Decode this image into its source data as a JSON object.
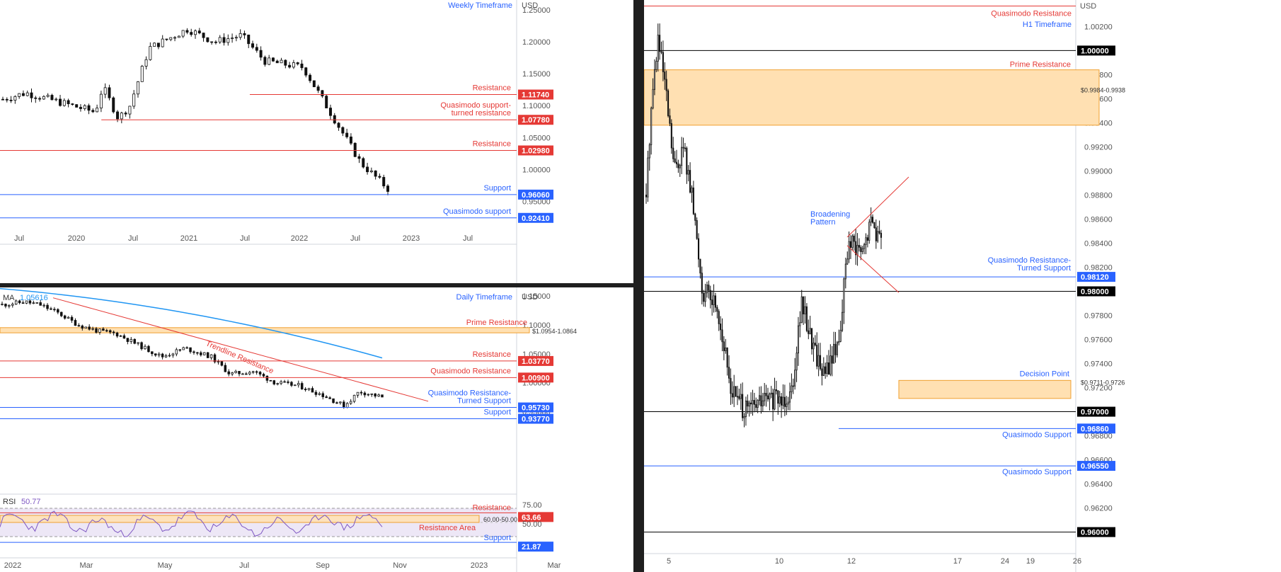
{
  "colors": {
    "bull": "#111111",
    "bear": "#111111",
    "resistance": "#e53935",
    "support": "#2962ff",
    "ma": "#2196f3",
    "rsi": "#7e57c2",
    "zone_fill": "#ffe0b2",
    "zone_stroke": "#f0a030",
    "tag_red": "#e53935",
    "tag_blue": "#2962ff",
    "tag_black": "#000000",
    "rsi_band": "#ede7f6"
  },
  "weekly": {
    "title": "Weekly Timeframe",
    "currency": "USD",
    "y_ticks": [
      "1.25000",
      "1.20000",
      "1.15000",
      "1.10000",
      "1.05000",
      "1.00000",
      "0.95000"
    ],
    "x_ticks": [
      "Jul",
      "2020",
      "Jul",
      "2021",
      "Jul",
      "2022",
      "Jul",
      "2023",
      "Jul"
    ],
    "levels": [
      {
        "label": "Resistance",
        "price": "1.11740",
        "kind": "resistance",
        "from": 0.21
      },
      {
        "label": "Quasimodo support-\nturned resistance",
        "price": "1.07780",
        "kind": "resistance",
        "from": 0.16
      },
      {
        "label": "Resistance",
        "price": "1.02980",
        "kind": "resistance",
        "from": 0.0
      },
      {
        "label": "Support",
        "price": "0.96060",
        "kind": "support",
        "from": 0.0
      },
      {
        "label": "Quasimodo support",
        "price": "0.92410",
        "kind": "support",
        "from": 0.0
      }
    ]
  },
  "daily": {
    "title": "Daily Timeframe",
    "currency": "USD",
    "ma_label": "MA",
    "ma_value": "1.05616",
    "trendline_label": "Trendline Resistance",
    "y_ticks": [
      "1.15000",
      "1.10000",
      "1.05000",
      "1.00000",
      "0.95000"
    ],
    "x_ticks": [
      "2022",
      "Mar",
      "May",
      "Jul",
      "Sep",
      "Nov",
      "2023",
      "Mar"
    ],
    "zone": {
      "label": "Prime Resistance",
      "range": "$1.0954-1.0864",
      "top": 1.0954,
      "bottom": 1.0864
    },
    "levels": [
      {
        "label": "Resistance",
        "price": "1.03770",
        "kind": "resistance"
      },
      {
        "label": "Quasimodo Resistance",
        "price": "1.00900",
        "kind": "resistance"
      },
      {
        "label": "Quasimodo Resistance-\nTurned Support",
        "price": "0.95730",
        "kind": "support"
      },
      {
        "label": "Support",
        "price": "0.93770",
        "kind": "support"
      }
    ],
    "rsi": {
      "label": "RSI",
      "value": "50.77",
      "y_ticks": [
        "75.00",
        "50.00"
      ],
      "zone_range": "60.00-50.00",
      "zone_label": "Resistance Area",
      "resistance_label": "Resistance",
      "resistance_value": "63.66",
      "support_label": "Support",
      "support_value": "21.87"
    }
  },
  "h1": {
    "title": "H1 Timeframe",
    "currency": "USD",
    "y_ticks": [
      "1.00200",
      "0.99800",
      "0.99600",
      "0.99400",
      "0.99200",
      "0.99000",
      "0.98800",
      "0.98600",
      "0.98400",
      "0.98200",
      "0.97800",
      "0.97600",
      "0.97400",
      "0.97200",
      "0.96800",
      "0.96600",
      "0.96400",
      "0.96200"
    ],
    "x_ticks": [
      "5",
      "10",
      "12",
      "17",
      "19",
      "24",
      "26"
    ],
    "round_levels": [
      "1.00000",
      "0.98000",
      "0.97000",
      "0.96000"
    ],
    "qm_resistance": {
      "label": "Quasimodo Resistance",
      "price": 1.0037
    },
    "prime_zone": {
      "label": "Prime Resistance",
      "range": "$0.9984-0.9938",
      "top": 0.9984,
      "bottom": 0.9938
    },
    "decision_zone": {
      "label": "Decision Point",
      "range": "$0.9711-0.9726",
      "top": 0.9726,
      "bottom": 0.9711
    },
    "qm_turned_support": {
      "label": "Quasimodo Resistance-\nTurned Support",
      "price": "0.98120"
    },
    "qm_support_1": {
      "label": "Quasimodo Support",
      "price": "0.96860"
    },
    "qm_support_2": {
      "label": "Quasimodo Support",
      "price": "0.96550"
    },
    "pattern_label": "Broadening\nPattern"
  }
}
